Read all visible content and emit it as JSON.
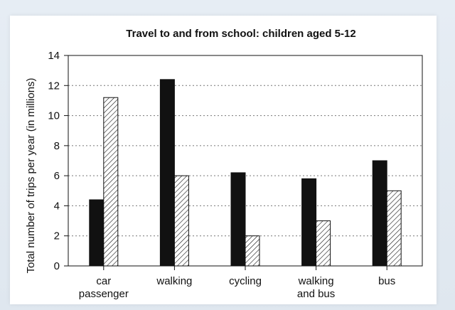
{
  "chart_data": {
    "type": "bar",
    "title": "Travel to and from school: children aged 5-12",
    "xlabel": "",
    "ylabel": "Total number of trips per year (in millions)",
    "categories": [
      [
        "car",
        "passenger"
      ],
      [
        "walking"
      ],
      [
        "cycling"
      ],
      [
        "walking",
        "and bus"
      ],
      [
        "bus"
      ]
    ],
    "series": [
      {
        "values": [
          4.4,
          12.4,
          6.2,
          5.8,
          7.0
        ],
        "color": "#111111",
        "pattern": "solid"
      },
      {
        "values": [
          11.2,
          6.0,
          2.0,
          3.0,
          5.0
        ],
        "color": "#ffffff",
        "pattern": "diagonal-hatch"
      }
    ],
    "ylim": [
      0,
      14
    ],
    "yticks": [
      0,
      2,
      4,
      6,
      8,
      10,
      12,
      14
    ],
    "grid": "horizontal-dashed",
    "legend": "none"
  }
}
